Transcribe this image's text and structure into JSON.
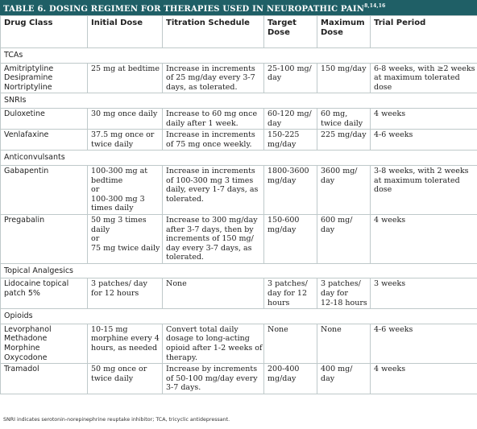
{
  "title": "TABLE 6. DOSING REGIMEN FOR THERAPIES USED IN NEUROPATHIC PAIN",
  "title_sup": "8,14,16",
  "headers": [
    "Drug Class",
    "Initial Dose",
    "Titration Schedule",
    "Target Dose",
    "Maximum Dose",
    "Trial Period"
  ],
  "groups": {
    "tcas": "TCAs",
    "snris": "SNRIs",
    "anticonvulsants": "Anticonvulsants",
    "topical": "Topical Analgesics",
    "opioids": "Opioids"
  },
  "rows": {
    "tca": {
      "drug": [
        "Amitriptyline",
        "Desipramine",
        "Nortriptyline"
      ],
      "initial": [
        "25 mg at bedtime"
      ],
      "titration": [
        "Increase in increments",
        "of 25 mg/day every 3-7",
        "days, as tolerated."
      ],
      "target": [
        "25-100 mg/",
        "day"
      ],
      "max": [
        "150 mg/day"
      ],
      "trial": [
        "6-8 weeks, with ≥2 weeks",
        "at maximum tolerated",
        "dose"
      ]
    },
    "duloxetine": {
      "drug": [
        "Duloxetine"
      ],
      "initial": [
        "30 mg once daily"
      ],
      "titration": [
        "Increase to 60 mg once",
        "daily after 1 week."
      ],
      "target": [
        "60-120 mg/",
        "day"
      ],
      "max": [
        "60 mg,",
        "twice daily"
      ],
      "trial": [
        "4 weeks"
      ]
    },
    "venlafaxine": {
      "drug": [
        "Venlafaxine"
      ],
      "initial": [
        "37.5 mg once or",
        "twice daily"
      ],
      "titration": [
        "Increase in increments",
        "of 75 mg once weekly."
      ],
      "target": [
        "150-225",
        "mg/day"
      ],
      "max": [
        "225 mg/day"
      ],
      "trial": [
        "4-6 weeks"
      ]
    },
    "gabapentin": {
      "drug": [
        "Gabapentin"
      ],
      "initial": [
        "100-300 mg at",
        "bedtime",
        "or",
        "100-300 mg 3",
        "times daily"
      ],
      "titration": [
        "Increase in increments",
        "of 100-300 mg 3 times",
        "daily, every 1-7 days, as",
        "tolerated."
      ],
      "target": [
        "1800-3600",
        "mg/day"
      ],
      "max": [
        "3600 mg/",
        "day"
      ],
      "trial": [
        "3-8 weeks, with 2 weeks",
        "at maximum tolerated",
        "dose"
      ]
    },
    "pregabalin": {
      "drug": [
        "Pregabalin"
      ],
      "initial": [
        "50 mg 3 times",
        "daily",
        "or",
        "75 mg twice daily"
      ],
      "titration": [
        "Increase to 300 mg/day",
        "after 3-7 days, then by",
        "increments of 150 mg/",
        "day every 3-7 days, as",
        "tolerated."
      ],
      "target": [
        "150-600",
        "mg/day"
      ],
      "max": [
        "600 mg/",
        "day"
      ],
      "trial": [
        "4 weeks"
      ]
    },
    "lidocaine": {
      "drug": [
        "Lidocaine topical",
        "patch 5%"
      ],
      "initial": [
        "3 patches/ day",
        "for 12 hours"
      ],
      "titration": [
        "None"
      ],
      "target": [
        "3 patches/",
        "day for 12",
        "hours"
      ],
      "max": [
        "3 patches/",
        "day for",
        "12-18 hours"
      ],
      "trial": [
        "3 weeks"
      ]
    },
    "opioid": {
      "drug": [
        "Levorphanol",
        "Methadone",
        "Morphine",
        "Oxycodone"
      ],
      "initial": [
        "10-15 mg",
        "morphine every 4",
        "hours, as needed"
      ],
      "titration": [
        "Convert total daily",
        "dosage to long-acting",
        "opioid after 1-2 weeks of",
        "therapy."
      ],
      "target": [
        "None"
      ],
      "max": [
        "None"
      ],
      "trial": [
        "4-6 weeks"
      ]
    },
    "tramadol": {
      "drug": [
        "Tramadol"
      ],
      "initial": [
        "50 mg once or",
        "twice daily"
      ],
      "titration": [
        "Increase by increments",
        "of 50-100 mg/day every",
        "3-7 days."
      ],
      "target": [
        "200-400",
        "mg/day"
      ],
      "max": [
        "400 mg/",
        "day"
      ],
      "trial": [
        "4 weeks"
      ]
    }
  },
  "footnote": "SNRI indicates serotonin-norepinephrine reuptake inhibitor; TCA, tricyclic antidepressant.",
  "colors": {
    "title_bg": "#1f5f66",
    "border": "#bfc9ca"
  }
}
